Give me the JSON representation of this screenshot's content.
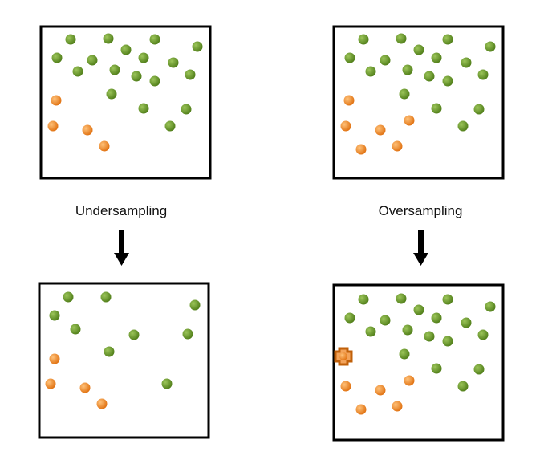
{
  "panels": {
    "left_label": "Undersampling",
    "right_label": "Oversampling"
  }
}
